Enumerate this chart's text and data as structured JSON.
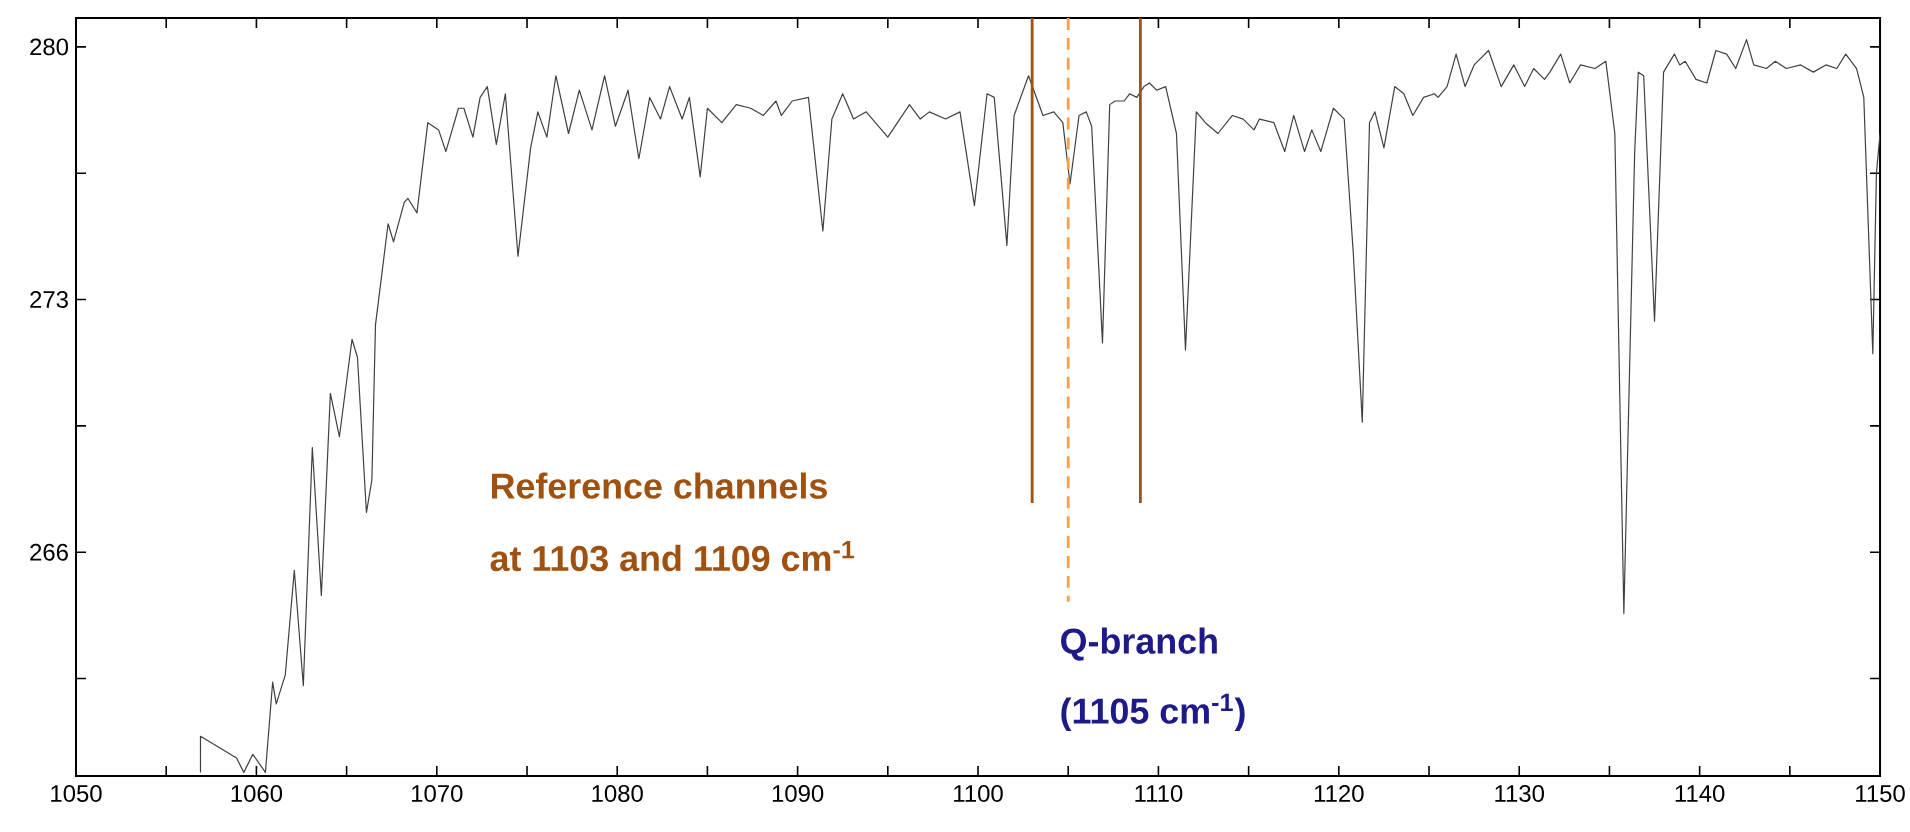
{
  "chart_data": {
    "type": "line",
    "x": [
      1056.9,
      1056.9,
      1058.9,
      1059.3,
      1059.8,
      1060.5,
      1060.9,
      1061.1,
      1061.6,
      1062.1,
      1062.6,
      1063.1,
      1063.6,
      1064.1,
      1064.6,
      1065.3,
      1065.6,
      1066.1,
      1066.4,
      1066.6,
      1067.0,
      1067.3,
      1067.6,
      1068.2,
      1068.4,
      1068.9,
      1069.5,
      1070.1,
      1070.5,
      1071.2,
      1071.5,
      1072.0,
      1072.4,
      1072.8,
      1073.3,
      1073.8,
      1074.5,
      1075.2,
      1075.6,
      1076.1,
      1076.6,
      1077.3,
      1077.9,
      1078.6,
      1079.3,
      1079.9,
      1080.6,
      1081.2,
      1081.8,
      1082.4,
      1082.9,
      1083.6,
      1084.0,
      1084.6,
      1085.0,
      1085.8,
      1086.6,
      1087.4,
      1088.1,
      1088.8,
      1089.1,
      1089.7,
      1090.6,
      1091.4,
      1091.9,
      1092.5,
      1093.1,
      1093.8,
      1095.0,
      1096.2,
      1096.8,
      1097.3,
      1098.2,
      1099.0,
      1099.8,
      1100.5,
      1100.9,
      1101.6,
      1102.0,
      1102.8,
      1103.6,
      1104.2,
      1104.7,
      1105.1,
      1105.6,
      1106.0,
      1106.3,
      1106.9,
      1107.3,
      1107.6,
      1108.1,
      1108.4,
      1108.8,
      1109.2,
      1109.5,
      1109.9,
      1110.4,
      1111.0,
      1111.5,
      1112.1,
      1112.6,
      1113.3,
      1114.1,
      1114.7,
      1115.3,
      1115.6,
      1116.4,
      1117.0,
      1117.5,
      1118.1,
      1118.5,
      1119.0,
      1119.7,
      1120.3,
      1120.8,
      1121.3,
      1121.7,
      1122.0,
      1122.5,
      1123.1,
      1123.6,
      1124.1,
      1124.7,
      1125.3,
      1125.5,
      1126.0,
      1126.5,
      1127.0,
      1127.5,
      1128.3,
      1129.0,
      1129.7,
      1130.3,
      1130.8,
      1131.4,
      1131.7,
      1132.3,
      1132.8,
      1133.4,
      1134.2,
      1134.8,
      1135.3,
      1135.8,
      1136.4,
      1136.6,
      1136.9,
      1137.5,
      1138.0,
      1138.6,
      1138.9,
      1139.2,
      1139.8,
      1140.4,
      1140.9,
      1141.5,
      1142.0,
      1142.6,
      1143.0,
      1143.7,
      1144.2,
      1144.8,
      1145.6,
      1146.3,
      1147.0,
      1147.6,
      1148.1,
      1148.7,
      1149.1,
      1149.6,
      1149.8,
      1150.0
    ],
    "values": [
      259.9,
      260.9,
      260.3,
      259.9,
      260.4,
      259.9,
      262.4,
      261.8,
      262.6,
      265.5,
      262.3,
      268.9,
      264.8,
      270.4,
      269.2,
      271.9,
      271.4,
      267.1,
      268.0,
      272.3,
      273.9,
      275.1,
      274.6,
      275.7,
      275.8,
      275.4,
      277.9,
      277.7,
      277.1,
      278.3,
      278.3,
      277.5,
      278.6,
      278.9,
      277.3,
      278.7,
      274.2,
      277.2,
      278.2,
      277.5,
      279.2,
      277.6,
      278.8,
      277.7,
      279.2,
      277.8,
      278.8,
      276.9,
      278.6,
      278.0,
      278.9,
      278.0,
      278.6,
      276.4,
      278.3,
      277.9,
      278.4,
      278.3,
      278.1,
      278.5,
      278.1,
      278.5,
      278.6,
      274.9,
      278.0,
      278.7,
      278.0,
      278.2,
      277.5,
      278.4,
      278.0,
      278.2,
      278.0,
      278.2,
      275.6,
      278.7,
      278.6,
      274.5,
      278.1,
      279.2,
      278.1,
      278.2,
      277.9,
      276.2,
      278.1,
      278.2,
      277.8,
      271.8,
      278.4,
      278.5,
      278.5,
      278.7,
      278.6,
      278.9,
      279.0,
      278.8,
      278.9,
      277.6,
      271.6,
      278.2,
      277.9,
      277.6,
      278.1,
      278.0,
      277.7,
      278.0,
      277.9,
      277.1,
      278.1,
      277.1,
      277.7,
      277.1,
      278.3,
      278.0,
      274.3,
      269.6,
      277.9,
      278.2,
      277.2,
      278.9,
      278.7,
      278.1,
      278.6,
      278.7,
      278.6,
      278.9,
      279.8,
      278.9,
      279.5,
      279.9,
      278.9,
      279.5,
      278.9,
      279.4,
      279.1,
      279.3,
      279.8,
      279.0,
      279.5,
      279.4,
      279.6,
      277.6,
      264.3,
      277.1,
      279.3,
      279.2,
      272.4,
      279.3,
      279.8,
      279.5,
      279.6,
      279.1,
      279.0,
      279.9,
      279.8,
      279.4,
      280.2,
      279.5,
      279.4,
      279.6,
      279.4,
      279.5,
      279.3,
      279.5,
      279.4,
      279.8,
      279.4,
      278.6,
      271.5,
      276.5,
      277.6
    ],
    "color": "#404040",
    "xlim": [
      1050,
      1150
    ],
    "xticks": [
      1050,
      {
        "value": 1055,
        "label": null
      },
      1060,
      {
        "value": 1065,
        "label": null
      },
      1070,
      {
        "value": 1075,
        "label": null
      },
      1080,
      {
        "value": 1085,
        "label": null
      },
      1090,
      {
        "value": 1095,
        "label": null
      },
      1100,
      {
        "value": 1105,
        "label": null
      },
      1110,
      {
        "value": 1115,
        "label": null
      },
      1120,
      {
        "value": 1125,
        "label": null
      },
      1130,
      {
        "value": 1135,
        "label": null
      },
      1140,
      {
        "value": 1145,
        "label": null
      },
      1150
    ],
    "ylim": [
      259.8,
      280.8
    ],
    "yticks": [
      {
        "value": 262.5,
        "label": null
      },
      266,
      {
        "value": 269.5,
        "label": null
      },
      273,
      {
        "value": 276.5,
        "label": null
      },
      280
    ],
    "ref_lines": [
      {
        "axis": "x",
        "value": 1103,
        "color": "#a0500f",
        "line_style": "solid"
      },
      {
        "axis": "x",
        "value": 1109,
        "color": "#a0500f",
        "line_style": "solid"
      },
      {
        "axis": "x",
        "value": 1105,
        "color": "#f4a050",
        "line_style": "dashed"
      }
    ],
    "annotations": [
      "Reference channels",
      "at 1103 and 1109 cm$^{-1}$",
      "Q-branch",
      "(1105 cm$^{-1}$)"
    ]
  }
}
